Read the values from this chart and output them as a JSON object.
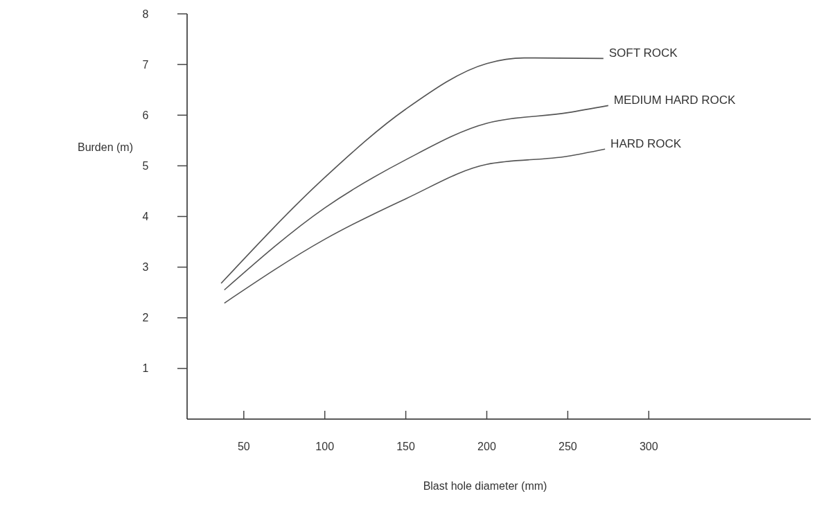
{
  "chart_data": {
    "type": "line",
    "xlabel": "Blast hole diameter (mm)",
    "ylabel": "Burden (m)",
    "xlim": [
      15,
      400
    ],
    "xticks": [
      50,
      100,
      150,
      200,
      250,
      300
    ],
    "ylim": [
      0,
      8
    ],
    "yticks": [
      1,
      2,
      3,
      4,
      5,
      6,
      7,
      8
    ],
    "grid": false,
    "legend": false,
    "marker": "none",
    "line_style": "solid",
    "series": [
      {
        "name": "SOFT ROCK",
        "color": "#555555",
        "x": [
          36,
          100,
          150,
          200,
          223,
          272
        ],
        "values": [
          2.68,
          4.77,
          6.12,
          7.02,
          7.13,
          7.12
        ]
      },
      {
        "name": "MEDIUM HARD ROCK",
        "color": "#555555",
        "x": [
          38,
          100,
          150,
          200,
          250,
          275
        ],
        "values": [
          2.55,
          4.17,
          5.12,
          5.84,
          6.05,
          6.19
        ]
      },
      {
        "name": "HARD ROCK",
        "color": "#555555",
        "x": [
          38,
          100,
          150,
          200,
          250,
          273
        ],
        "values": [
          2.29,
          3.55,
          4.35,
          5.03,
          5.19,
          5.33
        ]
      }
    ]
  }
}
